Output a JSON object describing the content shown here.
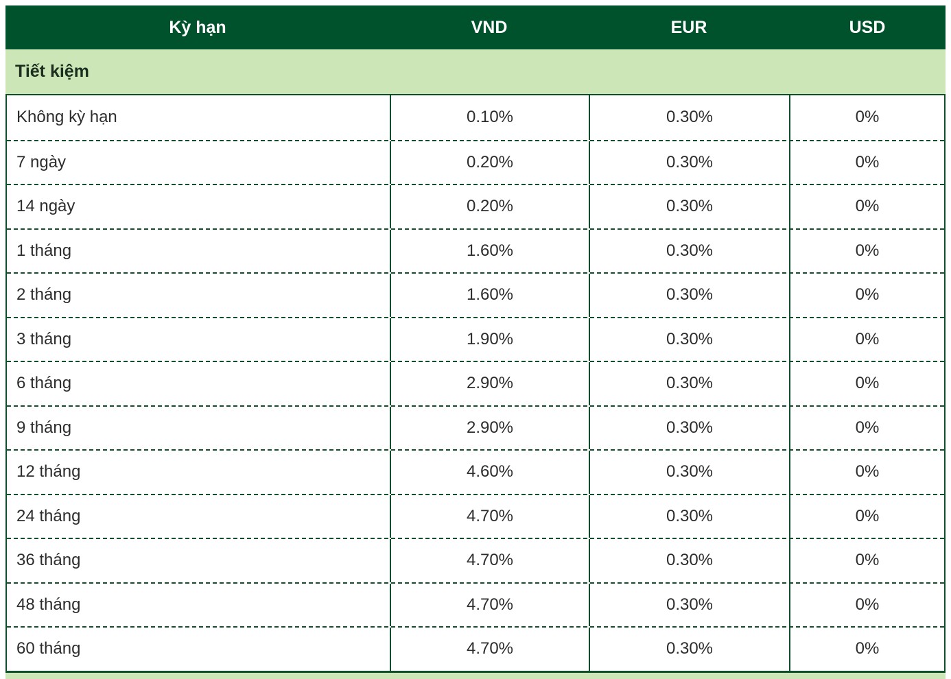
{
  "table": {
    "columns": {
      "term": "Kỳ hạn",
      "vnd": "VND",
      "eur": "EUR",
      "usd": "USD"
    },
    "section_label": "Tiết kiệm",
    "rows": [
      {
        "label": "Không kỳ hạn",
        "vnd": "0.10%",
        "eur": "0.30%",
        "usd": "0%"
      },
      {
        "label": "7 ngày",
        "vnd": "0.20%",
        "eur": "0.30%",
        "usd": "0%"
      },
      {
        "label": "14 ngày",
        "vnd": "0.20%",
        "eur": "0.30%",
        "usd": "0%"
      },
      {
        "label": "1 tháng",
        "vnd": "1.60%",
        "eur": "0.30%",
        "usd": "0%"
      },
      {
        "label": "2 tháng",
        "vnd": "1.60%",
        "eur": "0.30%",
        "usd": "0%"
      },
      {
        "label": "3 tháng",
        "vnd": "1.90%",
        "eur": "0.30%",
        "usd": "0%"
      },
      {
        "label": "6 tháng",
        "vnd": "2.90%",
        "eur": "0.30%",
        "usd": "0%"
      },
      {
        "label": "9 tháng",
        "vnd": "2.90%",
        "eur": "0.30%",
        "usd": "0%"
      },
      {
        "label": "12 tháng",
        "vnd": "4.60%",
        "eur": "0.30%",
        "usd": "0%"
      },
      {
        "label": "24 tháng",
        "vnd": "4.70%",
        "eur": "0.30%",
        "usd": "0%"
      },
      {
        "label": "36 tháng",
        "vnd": "4.70%",
        "eur": "0.30%",
        "usd": "0%"
      },
      {
        "label": "48 tháng",
        "vnd": "4.70%",
        "eur": "0.30%",
        "usd": "0%"
      },
      {
        "label": "60 tháng",
        "vnd": "4.70%",
        "eur": "0.30%",
        "usd": "0%"
      }
    ],
    "colors": {
      "header_bg": "#00522c",
      "header_text": "#ffffff",
      "section_bg": "#cde6b8",
      "section_text": "#1c2f1e",
      "border": "#0e4e2b",
      "body_text": "#2d2d2d"
    }
  }
}
